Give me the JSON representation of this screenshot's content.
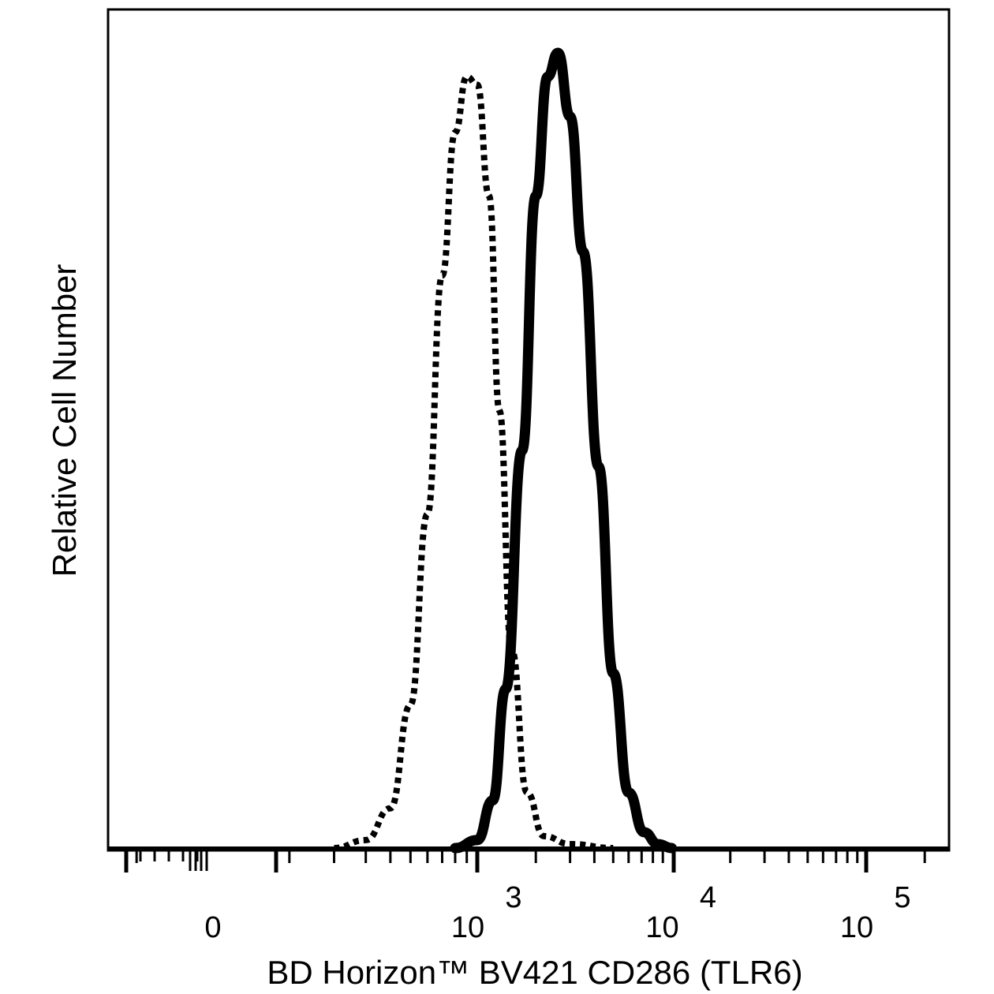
{
  "chart_data": {
    "type": "line",
    "title": "",
    "xlabel": "BD Horizon™ BV421 CD286 (TLR6)",
    "ylabel": "Relative Cell Number",
    "x_scale": "biexponential",
    "x_ticks": [
      {
        "value": 0,
        "base": "0",
        "exp": ""
      },
      {
        "value": 1000,
        "base": "10",
        "exp": "3"
      },
      {
        "value": 10000,
        "base": "10",
        "exp": "4"
      },
      {
        "value": 100000,
        "base": "10",
        "exp": "5"
      }
    ],
    "ylim": [
      0,
      100
    ],
    "grid": false,
    "legend": "none",
    "series": [
      {
        "style": "dotted",
        "x": [
          200,
          300,
          400,
          500,
          600,
          700,
          800,
          900,
          1000,
          1150,
          1300,
          1500,
          1800,
          2200,
          3000,
          5000
        ],
        "y": [
          0,
          1,
          5,
          18,
          42,
          72,
          90,
          97,
          96,
          82,
          55,
          25,
          7,
          1.5,
          0.5,
          0
        ]
      },
      {
        "style": "solid",
        "x": [
          800,
          1000,
          1200,
          1400,
          1700,
          2000,
          2300,
          2600,
          3000,
          3500,
          4200,
          5000,
          6000,
          7200,
          8500,
          10000
        ],
        "y": [
          0,
          1,
          6,
          20,
          50,
          82,
          97,
          100,
          92,
          75,
          48,
          22,
          7,
          2,
          0.5,
          0
        ]
      }
    ]
  }
}
